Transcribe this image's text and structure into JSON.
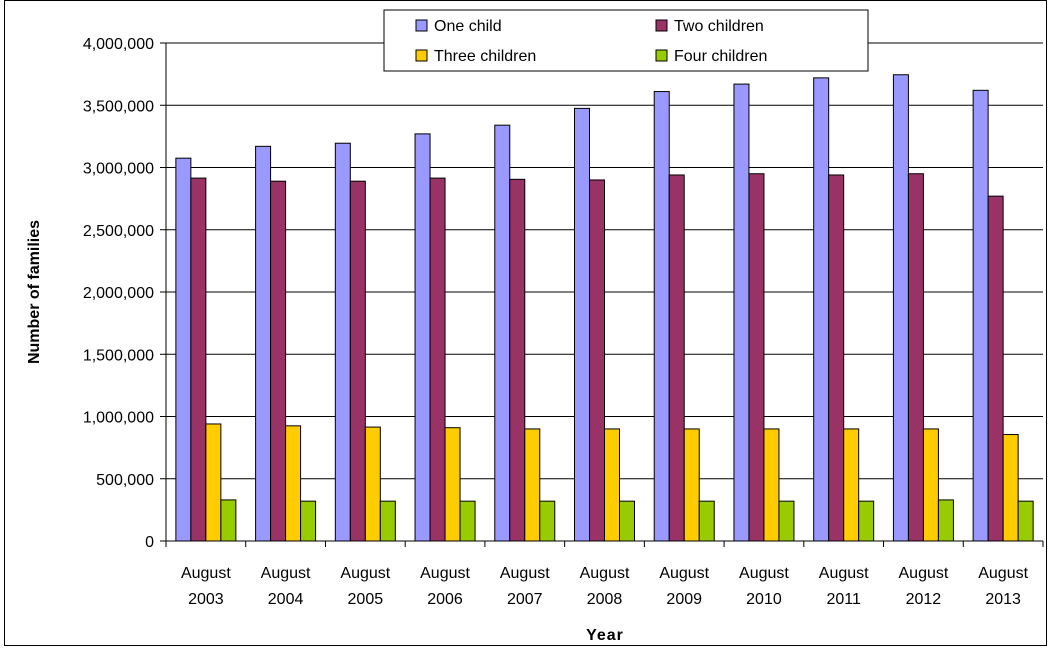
{
  "chart_data": {
    "type": "bar",
    "title": "",
    "xlabel": "Year",
    "ylabel": "Number of families",
    "ylim": [
      0,
      4000000
    ],
    "yticks": [
      0,
      500000,
      1000000,
      1500000,
      2000000,
      2500000,
      3000000,
      3500000,
      4000000
    ],
    "ytick_labels": [
      "0",
      "500,000",
      "1,000,000",
      "1,500,000",
      "2,000,000",
      "2,500,000",
      "3,000,000",
      "3,500,000",
      "4,000,000"
    ],
    "grid": true,
    "legend_position": "top",
    "categories": [
      [
        "August",
        "2003"
      ],
      [
        "August",
        "2004"
      ],
      [
        "August",
        "2005"
      ],
      [
        "August",
        "2006"
      ],
      [
        "August",
        "2007"
      ],
      [
        "August",
        "2008"
      ],
      [
        "August",
        "2009"
      ],
      [
        "August",
        "2010"
      ],
      [
        "August",
        "2011"
      ],
      [
        "August",
        "2012"
      ],
      [
        "August",
        "2013"
      ]
    ],
    "series": [
      {
        "name": "One child",
        "color": "#9999ff",
        "values": [
          3075000,
          3170000,
          3195000,
          3270000,
          3340000,
          3475000,
          3610000,
          3670000,
          3720000,
          3745000,
          3620000
        ]
      },
      {
        "name": "Two children",
        "color": "#993366",
        "values": [
          2915000,
          2890000,
          2890000,
          2915000,
          2905000,
          2900000,
          2940000,
          2950000,
          2940000,
          2950000,
          2770000
        ]
      },
      {
        "name": "Three children",
        "color": "#ffcc00",
        "values": [
          940000,
          925000,
          915000,
          910000,
          900000,
          900000,
          900000,
          900000,
          900000,
          900000,
          855000
        ]
      },
      {
        "name": "Four children",
        "color": "#99cc00",
        "values": [
          330000,
          320000,
          320000,
          320000,
          320000,
          320000,
          320000,
          320000,
          320000,
          330000,
          320000
        ]
      }
    ]
  }
}
